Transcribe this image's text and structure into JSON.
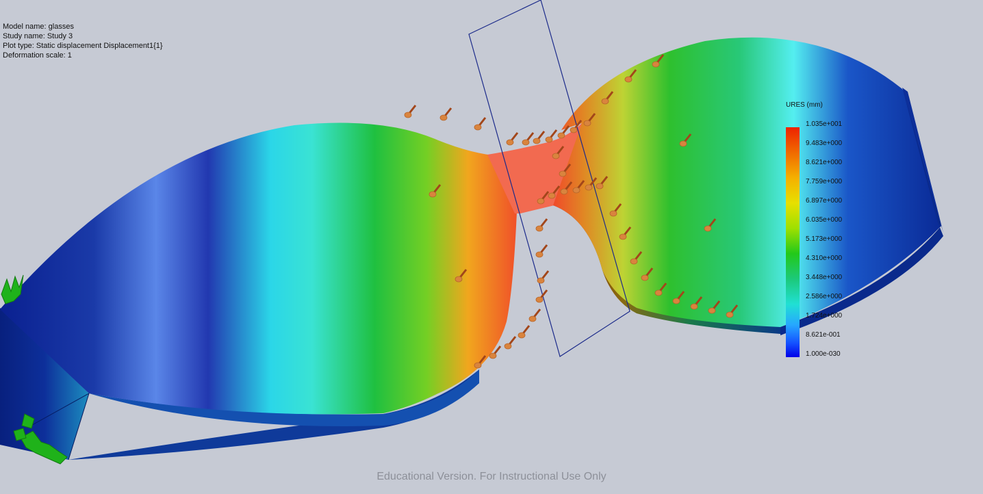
{
  "model_info": {
    "model_name": "Model name: glasses",
    "study_name": "Study name: Study 3",
    "plot_type": "Plot type: Static displacement Displacement1{1}",
    "deformation_scale": "Deformation scale: 1"
  },
  "legend": {
    "title": "URES (mm)",
    "ticks": [
      "1.035e+001",
      "9.483e+000",
      "8.621e+000",
      "7.759e+000",
      "6.897e+000",
      "6.035e+000",
      "5.173e+000",
      "4.310e+000",
      "3.448e+000",
      "2.586e+000",
      "1.724e+000",
      "8.621e-001",
      "1.000e-030"
    ]
  },
  "watermark": "Educational Version. For Instructional Use Only",
  "colors": {
    "background": "#c6cad4",
    "low": "#0000e8",
    "high": "#ee2200",
    "load_arrow": "#d9843e",
    "fixture": "#1fb21a",
    "section_plane": "#1b2a8a"
  },
  "icons": {
    "load_arrows": "force-arrow-icon",
    "fixtures": "fixture-icon"
  }
}
